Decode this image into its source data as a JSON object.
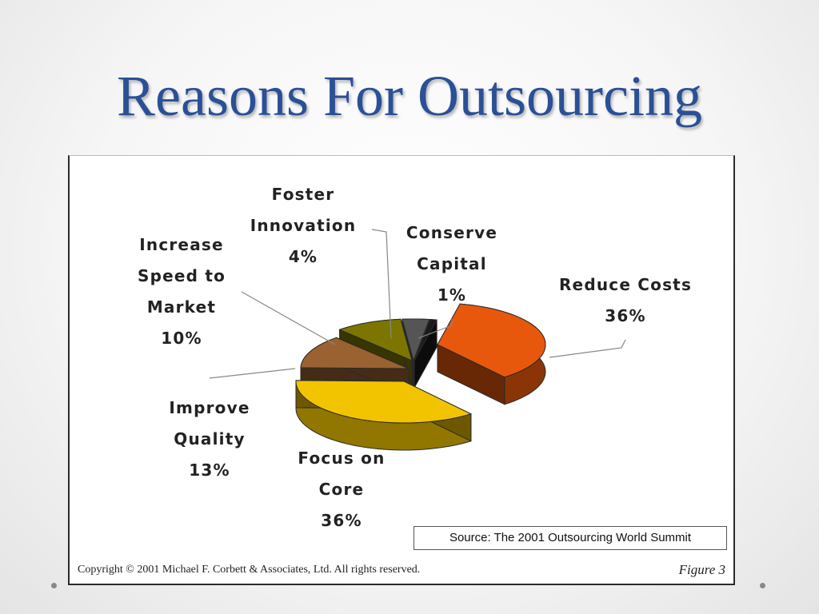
{
  "slide": {
    "title": "Reasons For Outsourcing"
  },
  "figure": {
    "source": "Source: The 2001 Outsourcing World Summit",
    "copyright": "Copyright © 2001 Michael F. Corbett & Associates, Ltd.  All rights reserved.",
    "figure_label": "Figure 3"
  },
  "chart_data": {
    "type": "pie",
    "title": "",
    "slices": [
      {
        "label_lines": [
          "Reduce Costs",
          "36%"
        ],
        "value": 36,
        "color": "#e8580c"
      },
      {
        "label_lines": [
          "Focus on",
          "Core",
          "36%"
        ],
        "value": 36,
        "color": "#f2c400"
      },
      {
        "label_lines": [
          "Improve",
          "Quality",
          "13%"
        ],
        "value": 13,
        "color": "#9a6230"
      },
      {
        "label_lines": [
          "Increase",
          "Speed to",
          "Market",
          "10%"
        ],
        "value": 10,
        "color": "#7c7600"
      },
      {
        "label_lines": [
          "Foster",
          "Innovation",
          "4%"
        ],
        "value": 4,
        "color": "#555555"
      },
      {
        "label_lines": [
          "Conserve",
          "Capital",
          "1%"
        ],
        "value": 1,
        "color": "#1a1a1a"
      }
    ]
  }
}
